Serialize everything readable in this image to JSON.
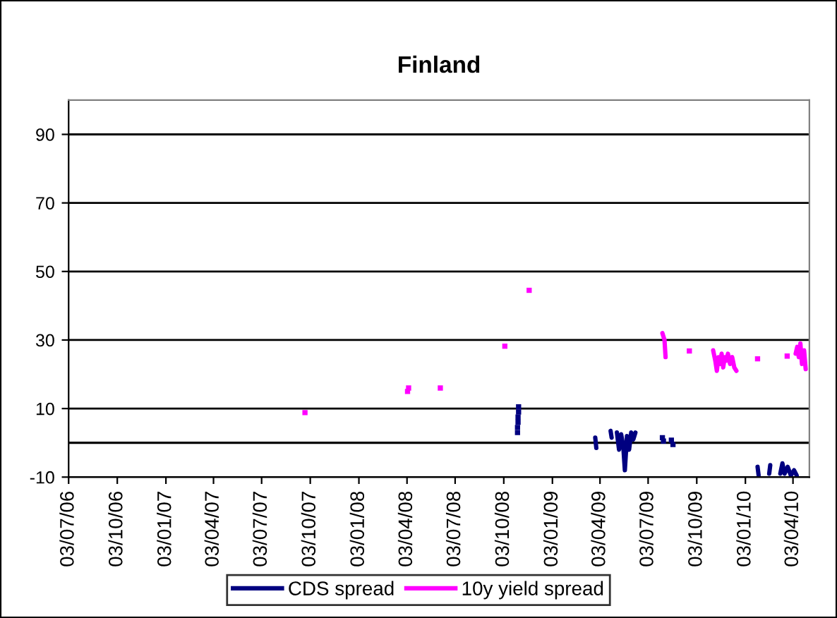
{
  "chart_data": {
    "type": "line",
    "title": "Finland",
    "xlim": [
      "2006-07-03",
      "2010-05-04"
    ],
    "xticks": [
      {
        "value": "2006-07-03",
        "label": "03/07/06"
      },
      {
        "value": "2006-10-03",
        "label": "03/10/06"
      },
      {
        "value": "2007-01-03",
        "label": "03/01/07"
      },
      {
        "value": "2007-04-03",
        "label": "03/04/07"
      },
      {
        "value": "2007-07-03",
        "label": "03/07/07"
      },
      {
        "value": "2007-10-03",
        "label": "03/10/07"
      },
      {
        "value": "2008-01-03",
        "label": "03/01/08"
      },
      {
        "value": "2008-04-03",
        "label": "03/04/08"
      },
      {
        "value": "2008-07-03",
        "label": "03/07/08"
      },
      {
        "value": "2008-10-03",
        "label": "03/10/08"
      },
      {
        "value": "2009-01-03",
        "label": "03/01/09"
      },
      {
        "value": "2009-04-03",
        "label": "03/04/09"
      },
      {
        "value": "2009-07-03",
        "label": "03/07/09"
      },
      {
        "value": "2009-10-03",
        "label": "03/10/09"
      },
      {
        "value": "2010-01-03",
        "label": "03/01/10"
      },
      {
        "value": "2010-04-03",
        "label": "03/04/10"
      }
    ],
    "ylim": [
      -10,
      100
    ],
    "yticks": [
      -10,
      10,
      30,
      50,
      70,
      90
    ],
    "grid": "y",
    "legend": "bottom",
    "ref_lines": [
      {
        "axis": "y",
        "value": 0,
        "color": "#000000"
      }
    ],
    "series": [
      {
        "name": "CDS spread",
        "color": "#000080",
        "x": [
          "2009-03-25",
          "2009-03-27",
          "2009-03-28",
          "2009-04-23",
          "2009-04-25",
          "2009-04-26",
          "2009-05-05",
          "2009-05-09",
          "2009-05-13",
          "2009-05-17",
          "2009-05-20",
          "2009-05-24",
          "2009-05-28",
          "2009-06-01",
          "2009-06-05",
          "2009-06-09",
          "2009-06-10",
          "2010-01-26",
          "2010-01-28",
          "2010-01-29",
          "2010-02-17",
          "2010-02-19",
          "2010-02-20",
          "2010-03-10",
          "2010-03-14",
          "2010-03-18",
          "2010-03-24",
          "2010-03-30",
          "2010-04-05",
          "2010-04-10"
        ],
        "values": [
          1.5,
          -1.5,
          null,
          3.5,
          1.5,
          null,
          3,
          -2,
          2.5,
          -1,
          -8,
          2,
          -2,
          3,
          1,
          3,
          null,
          -7,
          -9.5,
          null,
          -9,
          -6.5,
          null,
          -9,
          -6,
          -9,
          -7,
          -9.5,
          -8,
          -9.5
        ]
      },
      {
        "name": "10y yield spread",
        "color": "#ff00ff",
        "x": [
          "2009-07-30",
          "2009-08-01",
          "2009-08-03",
          "2009-08-05",
          "2009-08-06",
          "2009-11-03",
          "2009-11-07",
          "2009-11-10",
          "2009-11-13",
          "2009-11-16",
          "2009-11-19",
          "2009-11-22",
          "2009-11-25",
          "2009-11-28",
          "2009-12-01",
          "2009-12-05",
          "2009-12-09",
          "2009-12-13",
          "2009-12-17",
          "2009-12-18",
          "2010-04-08",
          "2010-04-11",
          "2010-04-14",
          "2010-04-17",
          "2010-04-20",
          "2010-04-24",
          "2010-04-27"
        ],
        "values": [
          32,
          31,
          30,
          25,
          null,
          27,
          24,
          21,
          25,
          23,
          26,
          22,
          25,
          24,
          26,
          23,
          25,
          22,
          21,
          null,
          26,
          28,
          25,
          29,
          23,
          27,
          21.5
        ]
      },
      {
        "type": "scatter",
        "marker": "square",
        "color": "#000080",
        "x": [
          "2008-10-29",
          "2008-10-29",
          "2008-10-30",
          "2008-10-30",
          "2008-10-31",
          "2008-10-31",
          "2009-07-30",
          "2009-08-01",
          "2009-08-16",
          "2009-08-19"
        ],
        "values": [
          3,
          4.5,
          6,
          7.5,
          9,
          10.5,
          1.5,
          0.5,
          0.8,
          -0.5
        ]
      },
      {
        "type": "scatter",
        "marker": "square",
        "color": "#ff00ff",
        "x": [
          "2007-09-23",
          "2008-04-04",
          "2008-04-06",
          "2008-06-05",
          "2008-10-05",
          "2008-11-20",
          "2009-09-19",
          "2010-01-26",
          "2010-03-23"
        ],
        "values": [
          8.8,
          15,
          16,
          16,
          28.2,
          44.5,
          26.8,
          24.5,
          25.3
        ]
      }
    ]
  }
}
